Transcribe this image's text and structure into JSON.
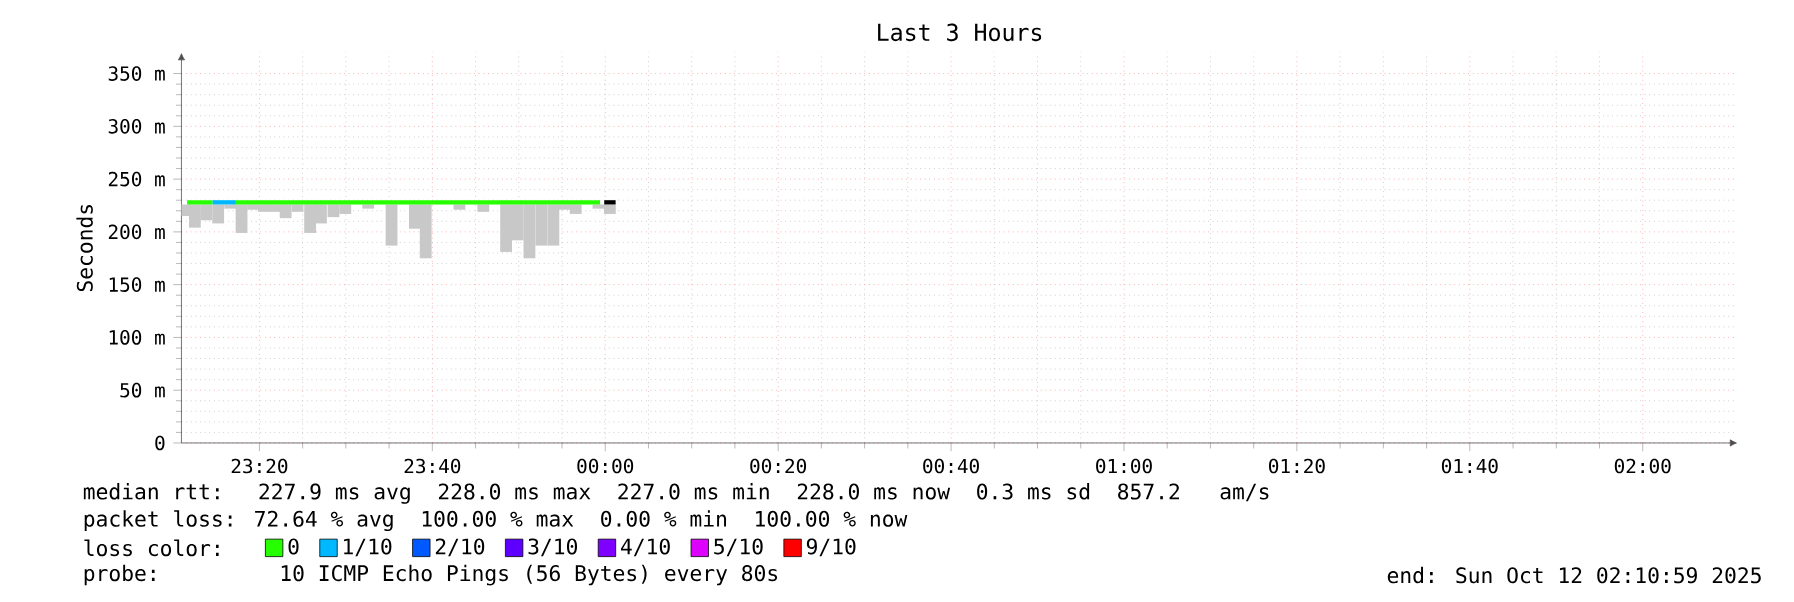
{
  "chart_data": {
    "type": "line",
    "title": "Last 3 Hours",
    "ylabel": "Seconds",
    "legend_title": "loss color:",
    "xlim": [
      "2025-10-11T23:10:59",
      "2025-10-12T02:10:59"
    ],
    "ylim": [
      0,
      370
    ],
    "xticks": [
      {
        "value": "2025-10-11T23:20",
        "label": "23:20"
      },
      {
        "value": "2025-10-11T23:40",
        "label": "23:40"
      },
      {
        "value": "2025-10-12T00:00",
        "label": "00:00"
      },
      {
        "value": "2025-10-12T00:20",
        "label": "00:20"
      },
      {
        "value": "2025-10-12T00:40",
        "label": "00:40"
      },
      {
        "value": "2025-10-12T01:00",
        "label": "01:00"
      },
      {
        "value": "2025-10-12T01:20",
        "label": "01:20"
      },
      {
        "value": "2025-10-12T01:40",
        "label": "01:40"
      },
      {
        "value": "2025-10-12T02:00",
        "label": "02:00"
      }
    ],
    "yticks": [
      {
        "value": 0,
        "label": "0"
      },
      {
        "value": 50,
        "label": "50 m"
      },
      {
        "value": 100,
        "label": "100 m"
      },
      {
        "value": 150,
        "label": "150 m"
      },
      {
        "value": 200,
        "label": "200 m"
      },
      {
        "value": 250,
        "label": "250 m"
      },
      {
        "value": 300,
        "label": "300 m"
      },
      {
        "value": 350,
        "label": "350 m"
      }
    ],
    "grid": true,
    "legend": "bottom",
    "series": [
      {
        "type": "bar",
        "color": "#c8c8c8",
        "x": [
          "2025-10-11T23:11:24",
          "2025-10-11T23:12:32",
          "2025-10-11T23:13:52",
          "2025-10-11T23:15:14",
          "2025-10-11T23:16:37",
          "2025-10-11T23:17:56",
          "2025-10-11T23:19:16",
          "2025-10-11T23:20:31",
          "2025-10-11T23:21:47",
          "2025-10-11T23:23:02",
          "2025-10-11T23:24:25",
          "2025-10-11T23:25:52",
          "2025-10-11T23:27:07",
          "2025-10-11T23:28:34",
          "2025-10-11T23:29:56",
          "2025-10-11T23:32:35",
          "2025-10-11T23:35:17",
          "2025-10-11T23:36:43",
          "2025-10-11T23:37:59",
          "2025-10-11T23:39:14",
          "2025-10-11T23:43:08",
          "2025-10-11T23:45:54",
          "2025-10-11T23:48:32",
          "2025-10-11T23:49:52",
          "2025-10-11T23:51:14",
          "2025-10-11T23:52:37",
          "2025-10-11T23:54:00",
          "2025-10-11T23:55:16",
          "2025-10-11T23:56:35",
          "2025-10-11T23:59:13",
          "2025-10-12T00:00:32"
        ],
        "base": [
          215,
          204,
          211,
          208,
          222,
          199,
          221,
          219,
          219,
          213,
          219,
          199,
          208,
          214,
          217,
          222,
          187,
          null,
          203,
          175,
          221,
          219,
          181,
          192,
          175,
          187,
          187,
          221,
          217,
          222,
          217
        ],
        "values": [
          11,
          22,
          15,
          18,
          4,
          27,
          5,
          7,
          7,
          13,
          7,
          27,
          18,
          12,
          9,
          4,
          39,
          null,
          23,
          51,
          5,
          7,
          45,
          34,
          51,
          39,
          39,
          5,
          9,
          4,
          9
        ]
      },
      {
        "name": "0",
        "color": "#26ff00",
        "x": [
          "2025-10-11T23:11:38",
          "2025-10-11T23:14:35",
          "2025-10-11T23:15:54",
          "2025-10-11T23:17:17",
          "2025-10-11T23:59:24"
        ],
        "values": [
          228,
          228,
          null,
          228,
          228
        ]
      },
      {
        "name": "1/10",
        "color": "#00b8ff",
        "x": [
          "2025-10-11T23:14:35",
          "2025-10-11T23:17:17"
        ],
        "values": [
          228,
          228
        ]
      },
      {
        "color": "#000000",
        "x": [
          "2025-10-11T23:59:53",
          "2025-10-12T00:01:12"
        ],
        "values": [
          228,
          228
        ]
      },
      {
        "name": "2/10",
        "color": "#0059ff"
      },
      {
        "name": "3/10",
        "color": "#5e00ff"
      },
      {
        "name": "4/10",
        "color": "#7e00ff"
      },
      {
        "name": "5/10",
        "color": "#dd00ff"
      },
      {
        "name": "9/10",
        "color": "#ff0000"
      }
    ],
    "annotations": [
      "median rtt:  227.9 ms avg  228.0 ms max  227.0 ms min  228.0 ms now  0.3 ms sd  857.2   am/s",
      "packet loss: 72.64 % avg  100.00 % max  0.00 % min  100.00 % now",
      "probe:       10 ICMP Echo Pings (56 Bytes) every 80s",
      "end: Sun Oct 12 02:10:59 2025"
    ]
  }
}
